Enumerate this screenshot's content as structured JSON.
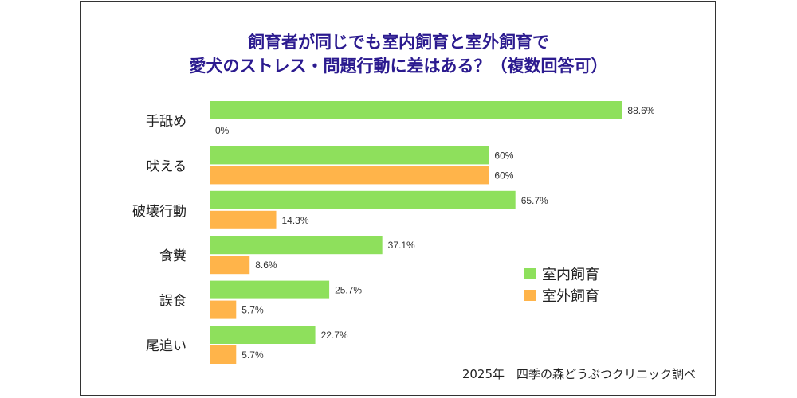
{
  "title": {
    "line1": "飼育者が同じでも室内飼育と室外飼育で",
    "line2": "愛犬のストレス・問題行動に差はある？（複数回答可）"
  },
  "source": "2025年　四季の森どうぶつクリニック調べ",
  "colors": {
    "indoor": "#8ee05c",
    "outdoor": "#ffb44a",
    "title": "#2b1a8f"
  },
  "chart_data": {
    "type": "bar",
    "orientation": "horizontal",
    "categories": [
      "手舐め",
      "吠える",
      "破壊行動",
      "食糞",
      "誤食",
      "尾追い"
    ],
    "series": [
      {
        "name": "室内飼育",
        "values": [
          88.6,
          60,
          65.7,
          37.1,
          25.7,
          22.7
        ],
        "labels": [
          "88.6%",
          "60%",
          "65.7%",
          "37.1%",
          "25.7%",
          "22.7%"
        ]
      },
      {
        "name": "室外飼育",
        "values": [
          0,
          60,
          14.3,
          8.6,
          5.7,
          5.7
        ],
        "labels": [
          "0%",
          "60%",
          "14.3%",
          "8.6%",
          "5.7%",
          "5.7%"
        ]
      }
    ],
    "legend_position": "bottom-right",
    "xlim": [
      0,
      100
    ]
  }
}
